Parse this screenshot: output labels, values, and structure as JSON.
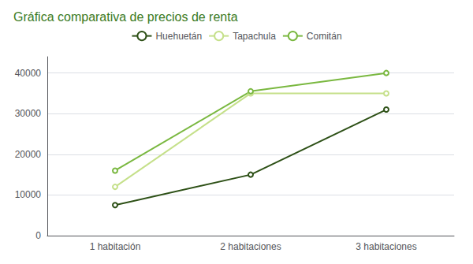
{
  "chart_data": {
    "type": "line",
    "title": "Gráfica comparativa de precios de renta",
    "categories": [
      "1 habitación",
      "2 habitaciones",
      "3 habitaciones"
    ],
    "series": [
      {
        "name": "Huehuetán",
        "values": [
          7500,
          15000,
          31000
        ],
        "color": "#2d5016"
      },
      {
        "name": "Tapachula",
        "values": [
          12000,
          35000,
          35000
        ],
        "color": "#c5e08a"
      },
      {
        "name": "Comitán",
        "values": [
          16000,
          35500,
          40000
        ],
        "color": "#7ab840"
      }
    ],
    "ylim": [
      0,
      44000
    ],
    "yticks": [
      0,
      10000,
      20000,
      30000,
      40000
    ],
    "grid": true,
    "legend": "top"
  }
}
